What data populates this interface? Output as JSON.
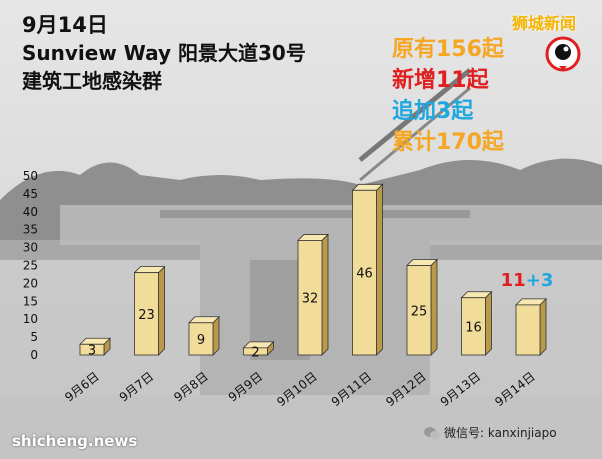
{
  "header": {
    "date": "9月14日",
    "location": "Sunview Way 阳景大道30号",
    "cluster": "建筑工地感染群"
  },
  "stats": [
    {
      "text": "原有156起",
      "color": "#f5a623"
    },
    {
      "text": "新增11起",
      "color": "#e02020"
    },
    {
      "text": "追加3起",
      "color": "#1fa8e0"
    },
    {
      "text": "累计170起",
      "color": "#f5a623"
    }
  ],
  "brand": {
    "name": "狮城新闻",
    "logo_icon": "lion-city-news-logo-icon"
  },
  "wechat": {
    "label": "微信号: kanxinjiapo",
    "icon": "wechat-icon"
  },
  "watermark": {
    "text": "shicheng.news"
  },
  "chart_data": {
    "type": "bar",
    "categories": [
      "9月6日",
      "9月7日",
      "9月8日",
      "9月9日",
      "9月10日",
      "9月11日",
      "9月12日",
      "9月13日",
      "9月14日"
    ],
    "values": [
      3,
      23,
      9,
      2,
      32,
      46,
      25,
      16,
      14
    ],
    "data_labels": [
      "3",
      "23",
      "9",
      "2",
      "32",
      "46",
      "25",
      "16",
      ""
    ],
    "ylim": [
      0,
      50
    ],
    "yticks": [
      0,
      5,
      10,
      15,
      20,
      25,
      30,
      35,
      40,
      45,
      50
    ],
    "grid": false,
    "bar_color": "#f1dc9a",
    "annotation": {
      "new": "11",
      "plus": "+",
      "added": "3",
      "new_color": "#e02020",
      "added_color": "#1fa8e0"
    }
  }
}
